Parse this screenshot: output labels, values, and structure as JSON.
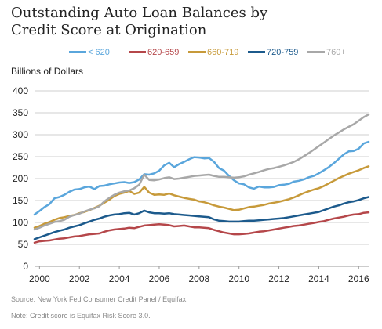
{
  "title_lines": [
    "Outstanding Auto Loan Balances by",
    "Credit Score at Origination"
  ],
  "units_label": "Billions of Dollars",
  "source": "Source: New York Fed Consumer Credit Panel / Equifax.",
  "note": "Note: Credit score is Equifax Risk Score 3.0.",
  "chart_data": {
    "type": "line",
    "title": "Outstanding Auto Loan Balances by Credit Score at Origination",
    "ylabel": "Billions of Dollars",
    "xlabel": "",
    "ylim": [
      0,
      400
    ],
    "xlim": [
      1999.75,
      2016.5
    ],
    "yticks": [
      0,
      50,
      100,
      150,
      200,
      250,
      300,
      350,
      400
    ],
    "xticks": [
      "2000",
      "2002",
      "2004",
      "2006",
      "2008",
      "2010",
      "2012",
      "2014",
      "2016"
    ],
    "grid": "horizontal",
    "legend_position": "top",
    "x": [
      1999.75,
      2000.0,
      2000.25,
      2000.5,
      2000.75,
      2001.0,
      2001.25,
      2001.5,
      2001.75,
      2002.0,
      2002.25,
      2002.5,
      2002.75,
      2003.0,
      2003.25,
      2003.5,
      2003.75,
      2004.0,
      2004.25,
      2004.5,
      2004.75,
      2005.0,
      2005.25,
      2005.5,
      2005.75,
      2006.0,
      2006.25,
      2006.5,
      2006.75,
      2007.0,
      2007.25,
      2007.5,
      2007.75,
      2008.0,
      2008.25,
      2008.5,
      2008.75,
      2009.0,
      2009.25,
      2009.5,
      2009.75,
      2010.0,
      2010.25,
      2010.5,
      2010.75,
      2011.0,
      2011.25,
      2011.5,
      2011.75,
      2012.0,
      2012.25,
      2012.5,
      2012.75,
      2013.0,
      2013.25,
      2013.5,
      2013.75,
      2014.0,
      2014.25,
      2014.5,
      2014.75,
      2015.0,
      2015.25,
      2015.5,
      2015.75,
      2016.0,
      2016.25,
      2016.5
    ],
    "series": [
      {
        "name": "< 620",
        "color": "#5aa6dc",
        "values": [
          118,
          126,
          135,
          142,
          155,
          158,
          163,
          170,
          175,
          176,
          180,
          182,
          176,
          183,
          184,
          187,
          189,
          191,
          192,
          190,
          192,
          198,
          210,
          209,
          212,
          218,
          230,
          236,
          226,
          233,
          238,
          244,
          249,
          248,
          246,
          247,
          238,
          224,
          218,
          206,
          196,
          189,
          187,
          180,
          177,
          182,
          180,
          180,
          181,
          185,
          186,
          188,
          193,
          195,
          198,
          203,
          206,
          212,
          219,
          226,
          235,
          245,
          255,
          262,
          263,
          268,
          280,
          284
        ]
      },
      {
        "name": "620-659",
        "color": "#b5474a",
        "values": [
          54,
          57,
          58,
          59,
          61,
          63,
          64,
          66,
          68,
          69,
          71,
          73,
          74,
          75,
          79,
          82,
          84,
          85,
          86,
          88,
          87,
          90,
          93,
          94,
          95,
          96,
          95,
          94,
          91,
          92,
          93,
          91,
          89,
          89,
          88,
          87,
          83,
          80,
          77,
          75,
          73,
          73,
          74,
          75,
          77,
          79,
          80,
          82,
          84,
          86,
          88,
          90,
          92,
          93,
          95,
          97,
          99,
          101,
          103,
          106,
          109,
          111,
          113,
          116,
          118,
          119,
          122,
          123
        ]
      },
      {
        "name": "660-719",
        "color": "#c79a3a",
        "values": [
          88,
          92,
          97,
          101,
          106,
          110,
          112,
          115,
          117,
          121,
          124,
          128,
          133,
          138,
          145,
          152,
          160,
          165,
          168,
          172,
          165,
          168,
          181,
          168,
          163,
          164,
          163,
          166,
          162,
          159,
          156,
          154,
          152,
          148,
          146,
          143,
          139,
          136,
          134,
          131,
          128,
          129,
          132,
          135,
          136,
          138,
          140,
          143,
          145,
          147,
          150,
          153,
          157,
          162,
          167,
          171,
          175,
          178,
          183,
          189,
          195,
          201,
          206,
          211,
          215,
          219,
          224,
          228
        ]
      },
      {
        "name": "720-759",
        "color": "#1c5a8c",
        "values": [
          62,
          66,
          70,
          74,
          78,
          81,
          84,
          88,
          91,
          94,
          98,
          102,
          106,
          109,
          113,
          116,
          118,
          119,
          121,
          122,
          118,
          121,
          127,
          123,
          121,
          121,
          120,
          121,
          119,
          118,
          117,
          116,
          115,
          114,
          113,
          112,
          107,
          104,
          103,
          102,
          102,
          102,
          103,
          104,
          104,
          105,
          106,
          107,
          108,
          109,
          110,
          112,
          114,
          116,
          118,
          120,
          122,
          124,
          128,
          132,
          136,
          139,
          143,
          146,
          148,
          151,
          155,
          158
        ]
      },
      {
        "name": "760+",
        "color": "#a8a8a8",
        "values": [
          84,
          88,
          93,
          97,
          101,
          103,
          106,
          113,
          117,
          120,
          125,
          129,
          132,
          137,
          148,
          156,
          163,
          168,
          171,
          173,
          178,
          186,
          209,
          197,
          196,
          198,
          201,
          203,
          199,
          200,
          202,
          204,
          206,
          207,
          208,
          209,
          206,
          204,
          204,
          203,
          202,
          203,
          205,
          209,
          212,
          215,
          219,
          222,
          224,
          227,
          230,
          234,
          238,
          244,
          251,
          258,
          266,
          274,
          282,
          290,
          298,
          305,
          312,
          318,
          324,
          332,
          340,
          346
        ]
      }
    ]
  }
}
